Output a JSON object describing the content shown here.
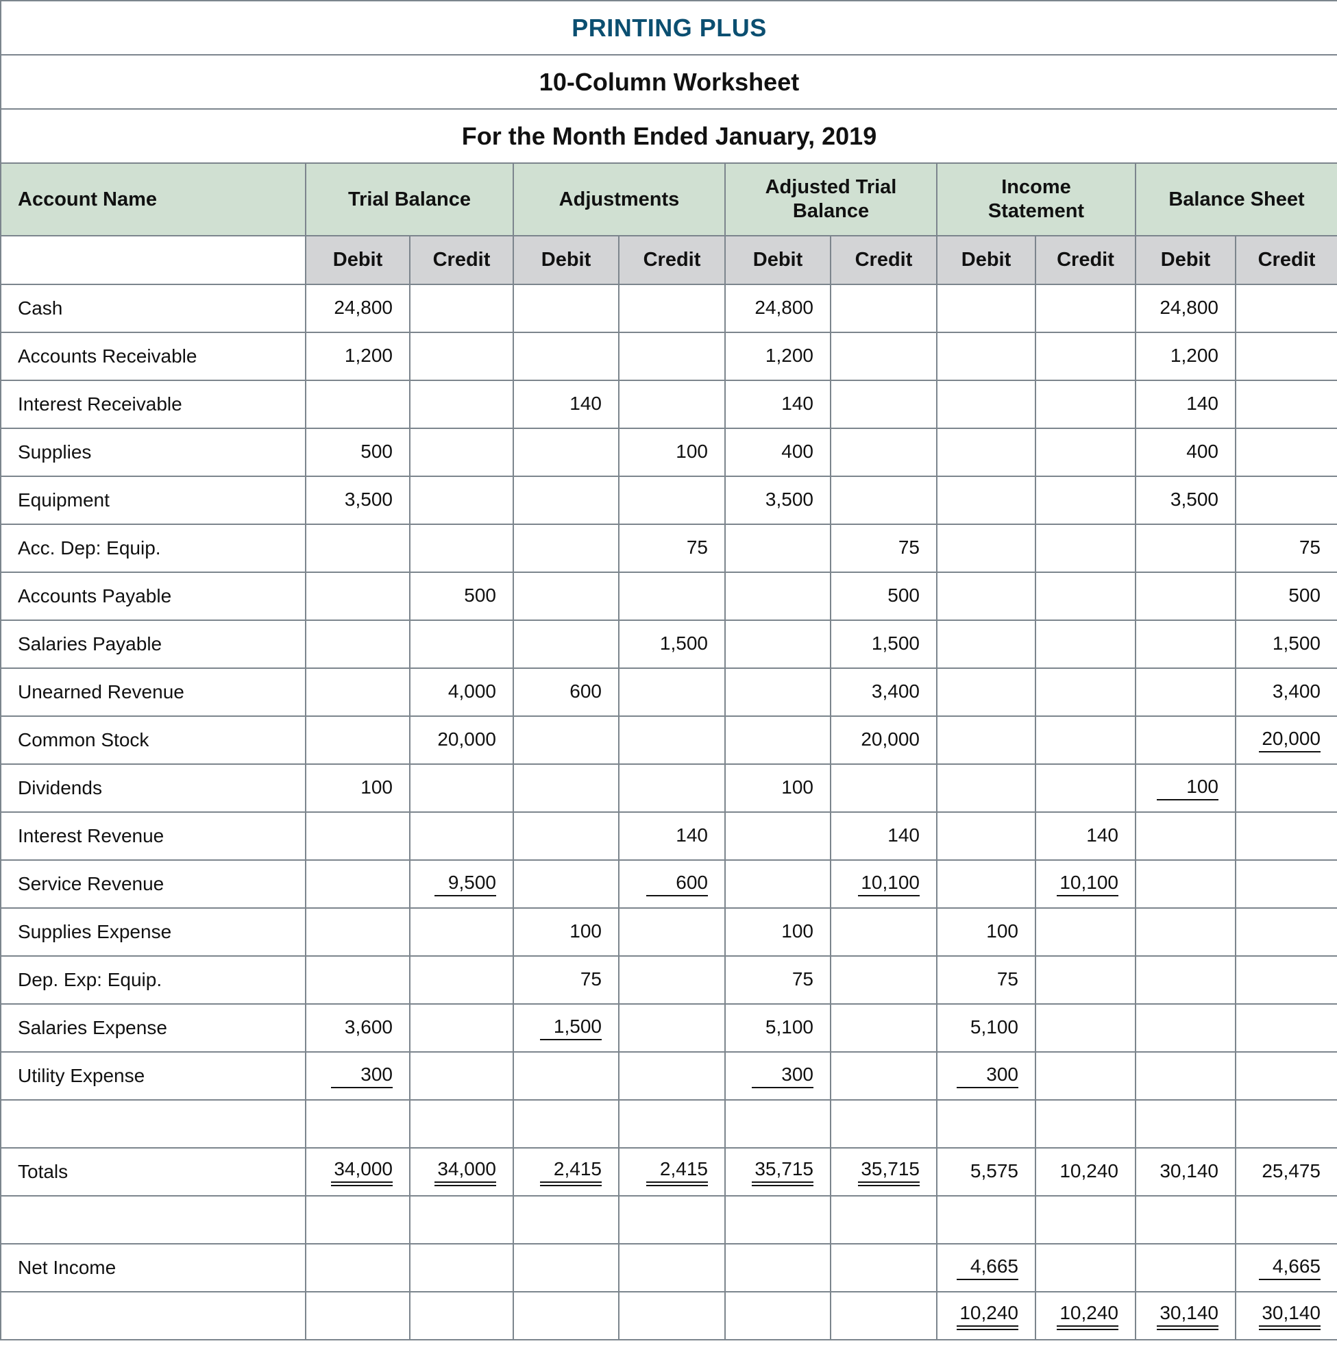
{
  "company": "PRINTING PLUS",
  "report": "10-Column Worksheet",
  "period": "For the Month Ended January, 2019",
  "colors": {
    "title": "#0b4f71",
    "header_bg": "#d0e0d2",
    "subheader_bg": "#d3d4d6",
    "grid": "#7c858d"
  },
  "headers": {
    "account": "Account Name",
    "groups": [
      "Trial Balance",
      "Adjustments",
      "Adjusted Trial Balance",
      "Income Statement",
      "Balance Sheet"
    ],
    "debit": "Debit",
    "credit": "Credit"
  },
  "rows": [
    {
      "name": "Cash",
      "cells": [
        {
          "v": "24,800"
        },
        {},
        {},
        {},
        {
          "v": "24,800"
        },
        {},
        {},
        {},
        {
          "v": "24,800"
        },
        {}
      ]
    },
    {
      "name": "Accounts Receivable",
      "cells": [
        {
          "v": "1,200"
        },
        {},
        {},
        {},
        {
          "v": "1,200"
        },
        {},
        {},
        {},
        {
          "v": "1,200"
        },
        {}
      ]
    },
    {
      "name": "Interest Receivable",
      "cells": [
        {},
        {},
        {
          "v": "140"
        },
        {},
        {
          "v": "140"
        },
        {},
        {},
        {},
        {
          "v": "140"
        },
        {}
      ]
    },
    {
      "name": "Supplies",
      "cells": [
        {
          "v": "500"
        },
        {},
        {},
        {
          "v": "100"
        },
        {
          "v": "400"
        },
        {},
        {},
        {},
        {
          "v": "400"
        },
        {}
      ]
    },
    {
      "name": "Equipment",
      "cells": [
        {
          "v": "3,500"
        },
        {},
        {},
        {},
        {
          "v": "3,500"
        },
        {},
        {},
        {},
        {
          "v": "3,500"
        },
        {}
      ]
    },
    {
      "name": "Acc. Dep: Equip.",
      "cells": [
        {},
        {},
        {},
        {
          "v": "75"
        },
        {},
        {
          "v": "75"
        },
        {},
        {},
        {},
        {
          "v": "75"
        }
      ]
    },
    {
      "name": "Accounts Payable",
      "cells": [
        {},
        {
          "v": "500"
        },
        {},
        {},
        {},
        {
          "v": "500"
        },
        {},
        {},
        {},
        {
          "v": "500"
        }
      ]
    },
    {
      "name": "Salaries Payable",
      "cells": [
        {},
        {},
        {},
        {
          "v": "1,500"
        },
        {},
        {
          "v": "1,500"
        },
        {},
        {},
        {},
        {
          "v": "1,500"
        }
      ]
    },
    {
      "name": "Unearned Revenue",
      "cells": [
        {},
        {
          "v": "4,000"
        },
        {
          "v": "600"
        },
        {},
        {},
        {
          "v": "3,400"
        },
        {},
        {},
        {},
        {
          "v": "3,400"
        }
      ]
    },
    {
      "name": "Common Stock",
      "cells": [
        {},
        {
          "v": "20,000"
        },
        {},
        {},
        {},
        {
          "v": "20,000"
        },
        {},
        {},
        {},
        {
          "v": "20,000",
          "u": "single"
        }
      ]
    },
    {
      "name": "Dividends",
      "cells": [
        {
          "v": "100"
        },
        {},
        {},
        {},
        {
          "v": "100"
        },
        {},
        {},
        {},
        {
          "v": "100",
          "u": "single"
        },
        {}
      ]
    },
    {
      "name": "Interest Revenue",
      "cells": [
        {},
        {},
        {},
        {
          "v": "140"
        },
        {},
        {
          "v": "140"
        },
        {},
        {
          "v": "140"
        },
        {},
        {}
      ]
    },
    {
      "name": "Service Revenue",
      "cells": [
        {},
        {
          "v": "9,500",
          "u": "single"
        },
        {},
        {
          "v": "600",
          "u": "single"
        },
        {},
        {
          "v": "10,100",
          "u": "single"
        },
        {},
        {
          "v": "10,100",
          "u": "single"
        },
        {},
        {}
      ]
    },
    {
      "name": "Supplies Expense",
      "cells": [
        {},
        {},
        {
          "v": "100"
        },
        {},
        {
          "v": "100"
        },
        {},
        {
          "v": "100"
        },
        {},
        {},
        {}
      ]
    },
    {
      "name": "Dep. Exp: Equip.",
      "cells": [
        {},
        {},
        {
          "v": "75"
        },
        {},
        {
          "v": "75"
        },
        {},
        {
          "v": "75"
        },
        {},
        {},
        {}
      ]
    },
    {
      "name": "Salaries Expense",
      "cells": [
        {
          "v": "3,600"
        },
        {},
        {
          "v": "1,500",
          "u": "single"
        },
        {},
        {
          "v": "5,100"
        },
        {},
        {
          "v": "5,100"
        },
        {},
        {},
        {}
      ]
    },
    {
      "name": "Utility Expense",
      "cells": [
        {
          "v": "300",
          "u": "single"
        },
        {},
        {},
        {},
        {
          "v": "300",
          "u": "single"
        },
        {},
        {
          "v": "300",
          "u": "single"
        },
        {},
        {},
        {}
      ]
    },
    {
      "name": "",
      "cells": [
        {},
        {},
        {},
        {},
        {},
        {},
        {},
        {},
        {},
        {}
      ]
    },
    {
      "name": "Totals",
      "cells": [
        {
          "v": "34,000",
          "u": "double"
        },
        {
          "v": "34,000",
          "u": "double"
        },
        {
          "v": "2,415",
          "u": "double"
        },
        {
          "v": "2,415",
          "u": "double"
        },
        {
          "v": "35,715",
          "u": "double"
        },
        {
          "v": "35,715",
          "u": "double"
        },
        {
          "v": "5,575"
        },
        {
          "v": "10,240"
        },
        {
          "v": "30,140"
        },
        {
          "v": "25,475"
        }
      ]
    },
    {
      "name": "",
      "cells": [
        {},
        {},
        {},
        {},
        {},
        {},
        {},
        {},
        {},
        {}
      ]
    },
    {
      "name": "Net Income",
      "cells": [
        {},
        {},
        {},
        {},
        {},
        {},
        {
          "v": "4,665",
          "u": "single"
        },
        {},
        {},
        {
          "v": "4,665",
          "u": "single"
        }
      ]
    },
    {
      "name": "",
      "cells": [
        {},
        {},
        {},
        {},
        {},
        {},
        {
          "v": "10,240",
          "u": "double"
        },
        {
          "v": "10,240",
          "u": "double"
        },
        {
          "v": "30,140",
          "u": "double"
        },
        {
          "v": "30,140",
          "u": "double"
        }
      ]
    }
  ]
}
